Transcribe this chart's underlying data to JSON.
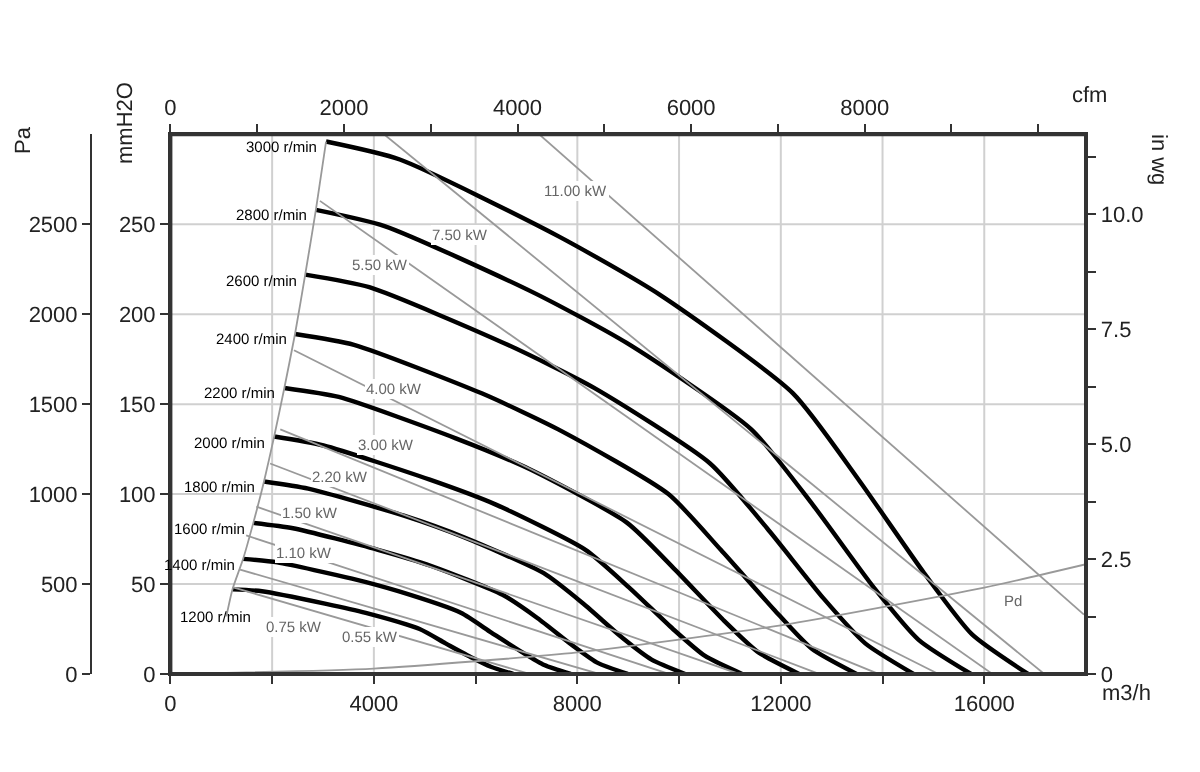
{
  "chart_data": {
    "type": "line",
    "xlabel": "m3/h",
    "ylabel": "Pa",
    "y2label": "mmH2O",
    "y3label": "in wg",
    "x2label": "cfm",
    "xlim": [
      0,
      18000
    ],
    "xticks": [
      0,
      {
        "value": 2000,
        "label": null
      },
      4000,
      {
        "value": 6000,
        "label": null
      },
      8000,
      {
        "value": 10000,
        "label": null
      },
      12000,
      {
        "value": 14000,
        "label": null
      },
      16000
    ],
    "ylim": [
      0,
      3000
    ],
    "yticks": [
      0,
      500,
      1000,
      1500,
      2000,
      2500
    ],
    "y2lim": [
      0,
      300
    ],
    "y2ticks": [
      0,
      50,
      100,
      150,
      200,
      250
    ],
    "y3lim": [
      0,
      11.74
    ],
    "y3ticks": [
      0,
      {
        "value": 1.25,
        "label": null
      },
      2.5,
      {
        "value": 3.75,
        "label": null
      },
      {
        "value": 5,
        "label": "5.0"
      },
      {
        "value": 6.25,
        "label": null
      },
      7.5,
      {
        "value": 8.75,
        "label": null
      },
      {
        "value": 10,
        "label": "10.0"
      },
      {
        "value": 11.25,
        "label": null
      }
    ],
    "x2lim": [
      0,
      10550
    ],
    "x2ticks": [
      0,
      {
        "value": 1000,
        "label": null
      },
      2000,
      {
        "value": 3000,
        "label": null
      },
      4000,
      {
        "value": 5000,
        "label": null
      },
      6000,
      {
        "value": 7000,
        "label": null
      },
      8000,
      {
        "value": 9000,
        "label": null
      },
      {
        "value": 10000,
        "label": null
      }
    ],
    "grid": true,
    "series": [
      {
        "color": "#000000",
        "x": [
          3060,
          4510,
          7650,
          9610,
          12240,
          13530,
          14820,
          15760,
          16860
        ],
        "values": [
          2960,
          2860,
          2430,
          2110,
          1560,
          1080,
          560,
          220,
          0
        ]
      },
      {
        "color": "#000000",
        "x": [
          2860,
          4210,
          7140,
          8970,
          11420,
          12630,
          13830,
          14710,
          15740
        ],
        "values": [
          2580,
          2490,
          2120,
          1840,
          1360,
          940,
          480,
          190,
          0
        ]
      },
      {
        "color": "#000000",
        "x": [
          2650,
          3910,
          6630,
          8330,
          10610,
          11730,
          12840,
          13660,
          14610
        ],
        "values": [
          2220,
          2150,
          1830,
          1590,
          1170,
          810,
          420,
          170,
          0
        ]
      },
      {
        "color": "#000000",
        "x": [
          2450,
          3610,
          6120,
          7690,
          9790,
          10820,
          11860,
          12610,
          13490
        ],
        "values": [
          1890,
          1830,
          1560,
          1350,
          1000,
          690,
          360,
          140,
          0
        ]
      },
      {
        "color": "#000000",
        "x": [
          2240,
          3310,
          5610,
          7050,
          8980,
          9920,
          10870,
          11560,
          12360
        ],
        "values": [
          1590,
          1540,
          1310,
          1140,
          840,
          580,
          300,
          120,
          0
        ]
      },
      {
        "color": "#000000",
        "x": [
          2040,
          3010,
          5100,
          6410,
          8160,
          9020,
          9880,
          10510,
          11240
        ],
        "values": [
          1320,
          1270,
          1080,
          940,
          690,
          480,
          250,
          100,
          0
        ]
      },
      {
        "color": "#000000",
        "x": [
          1840,
          2710,
          4590,
          5770,
          7340,
          8120,
          8890,
          9460,
          10120
        ],
        "values": [
          1070,
          1030,
          880,
          760,
          560,
          390,
          200,
          80,
          0
        ]
      },
      {
        "color": "#000000",
        "x": [
          1630,
          2410,
          4080,
          5130,
          6530,
          7220,
          7900,
          8410,
          8990
        ],
        "values": [
          840,
          810,
          690,
          600,
          440,
          310,
          160,
          60,
          0
        ]
      },
      {
        "color": "#000000",
        "x": [
          1430,
          2100,
          3570,
          4480,
          5710,
          6310,
          6920,
          7350,
          7870
        ],
        "values": [
          640,
          620,
          530,
          460,
          340,
          230,
          120,
          50,
          0
        ]
      },
      {
        "color": "#000000",
        "x": [
          1220,
          1800,
          3060,
          3840,
          4900,
          5410,
          5930,
          6300,
          6740
        ],
        "values": [
          470,
          460,
          390,
          340,
          250,
          170,
          90,
          40,
          0
        ]
      },
      {
        "color": "#999999",
        "x": [
          1250,
          7060
        ],
        "values": [
          480,
          0
        ]
      },
      {
        "color": "#999999",
        "x": [
          1370,
          8430
        ],
        "values": [
          580,
          0
        ]
      },
      {
        "color": "#999999",
        "x": [
          1490,
          9800
        ],
        "values": [
          770,
          0
        ]
      },
      {
        "color": "#999999",
        "x": [
          1690,
          11180
        ],
        "values": [
          930,
          0
        ]
      },
      {
        "color": "#999999",
        "x": [
          1960,
          12750
        ],
        "values": [
          1170,
          0
        ]
      },
      {
        "color": "#999999",
        "x": [
          2160,
          13920
        ],
        "values": [
          1360,
          0
        ]
      },
      {
        "color": "#999999",
        "x": [
          2430,
          15100
        ],
        "values": [
          1800,
          0
        ]
      },
      {
        "color": "#999999",
        "x": [
          2940,
          16160
        ],
        "values": [
          2630,
          0
        ]
      },
      {
        "color": "#999999",
        "x": [
          4200,
          17180
        ],
        "values": [
          3000,
          0
        ]
      },
      {
        "color": "#999999",
        "x": [
          7250,
          17960
        ],
        "values": [
          3000,
          330
        ]
      },
      {
        "color": "#999999",
        "x": [
          1100,
          1220,
          1430,
          1630,
          1840,
          2040,
          2240,
          2450,
          2650,
          2860,
          3060
        ],
        "values": [
          320,
          470,
          640,
          840,
          1070,
          1320,
          1590,
          1890,
          2220,
          2580,
          2960
        ]
      },
      {
        "color": "#999999",
        "x": [
          0,
          4000,
          8000,
          12000,
          16000,
          18000
        ],
        "values": [
          0,
          30,
          120,
          270,
          480,
          610
        ]
      }
    ],
    "annotations": [
      {
        "text": "3000 r/min",
        "x": 3060,
        "y": 2960
      },
      {
        "text": "2800 r/min",
        "x": 2860,
        "y": 2580
      },
      {
        "text": "2600 r/min",
        "x": 2650,
        "y": 2220
      },
      {
        "text": "2400 r/min",
        "x": 2450,
        "y": 1890
      },
      {
        "text": "2200 r/min",
        "x": 2240,
        "y": 1590
      },
      {
        "text": "2000 r/min",
        "x": 2040,
        "y": 1320
      },
      {
        "text": "1800 r/min",
        "x": 1840,
        "y": 1070
      },
      {
        "text": "1600 r/min",
        "x": 1630,
        "y": 840
      },
      {
        "text": "1400 r/min",
        "x": 1430,
        "y": 640
      },
      {
        "text": "1200 r/min",
        "x": 1220,
        "y": 470
      },
      {
        "text": "11.00 kW",
        "x": 7960,
        "y": 2690
      },
      {
        "text": "7.50 kW",
        "x": 5690,
        "y": 2440
      },
      {
        "text": "5.50 kW",
        "x": 4120,
        "y": 2270
      },
      {
        "text": "4.00 kW",
        "x": 4390,
        "y": 1580
      },
      {
        "text": "3.00 kW",
        "x": 4240,
        "y": 1270
      },
      {
        "text": "2.20 kW",
        "x": 3330,
        "y": 1090
      },
      {
        "text": "1.50 kW",
        "x": 2750,
        "y": 890
      },
      {
        "text": "1.10 kW",
        "x": 2630,
        "y": 670
      },
      {
        "text": "0.75 kW",
        "x": 2430,
        "y": 260
      },
      {
        "text": "0.55 kW",
        "x": 3920,
        "y": 200
      },
      {
        "text": "Pd",
        "x": 16550,
        "y": 410
      }
    ]
  }
}
